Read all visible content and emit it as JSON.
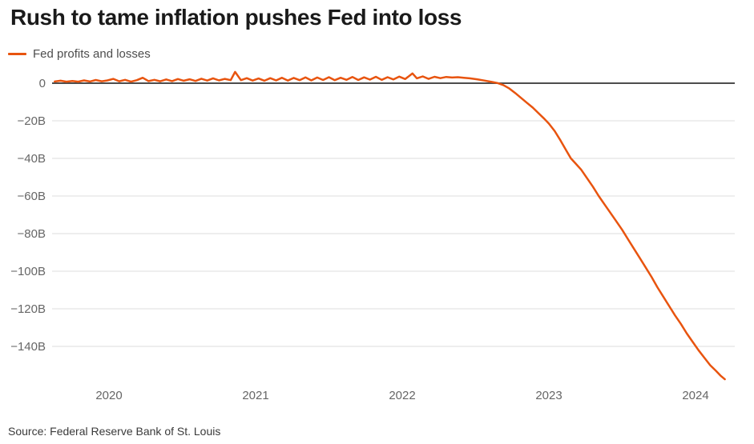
{
  "page": {
    "title": "Rush to tame inflation pushes Fed into loss",
    "source": "Source: Federal Reserve Bank of St. Louis"
  },
  "legend": {
    "items": [
      {
        "label": "Fed profits and losses",
        "color": "#e8540f"
      }
    ]
  },
  "chart_data": {
    "type": "line",
    "title": "Rush to tame inflation pushes Fed into loss",
    "xlabel": "",
    "ylabel": "",
    "y_unit": "billions of U.S. dollars",
    "xlim": [
      2019.6,
      2024.32
    ],
    "ylim": [
      -160,
      8
    ],
    "grid": "horizontal",
    "zero_line": true,
    "legend_position": "top-left",
    "x_ticks": [
      {
        "value": 2020,
        "label": "2020"
      },
      {
        "value": 2021,
        "label": "2021"
      },
      {
        "value": 2022,
        "label": "2022"
      },
      {
        "value": 2023,
        "label": "2023"
      },
      {
        "value": 2024,
        "label": "2024"
      }
    ],
    "y_ticks": [
      {
        "value": 0,
        "label": "0"
      },
      {
        "value": -20,
        "label": "−20B"
      },
      {
        "value": -40,
        "label": "−40B"
      },
      {
        "value": -60,
        "label": "−60B"
      },
      {
        "value": -80,
        "label": "−80B"
      },
      {
        "value": -100,
        "label": "−100B"
      },
      {
        "value": -120,
        "label": "−120B"
      },
      {
        "value": -140,
        "label": "−140B"
      }
    ],
    "colors": {
      "line": "#e8540f",
      "grid": "#dcdcdc",
      "zero_axis": "#4d4d4d",
      "title": "#1a1a1a",
      "tick_label": "#666666",
      "legend_text": "#4d4d4d",
      "source_text": "#3a3a3a"
    },
    "series": [
      {
        "name": "Fed profits and losses",
        "color": "#e8540f",
        "points": [
          [
            2019.63,
            0.9
          ],
          [
            2019.67,
            1.3
          ],
          [
            2019.71,
            0.8
          ],
          [
            2019.75,
            1.2
          ],
          [
            2019.79,
            0.8
          ],
          [
            2019.83,
            1.5
          ],
          [
            2019.87,
            0.9
          ],
          [
            2019.91,
            1.7
          ],
          [
            2019.95,
            1.0
          ],
          [
            2019.99,
            1.5
          ],
          [
            2020.03,
            2.3
          ],
          [
            2020.07,
            1.0
          ],
          [
            2020.11,
            1.8
          ],
          [
            2020.15,
            0.8
          ],
          [
            2020.19,
            1.6
          ],
          [
            2020.23,
            2.9
          ],
          [
            2020.27,
            1.1
          ],
          [
            2020.31,
            1.8
          ],
          [
            2020.35,
            1.0
          ],
          [
            2020.39,
            2.0
          ],
          [
            2020.43,
            1.1
          ],
          [
            2020.47,
            2.2
          ],
          [
            2020.51,
            1.3
          ],
          [
            2020.55,
            2.1
          ],
          [
            2020.59,
            1.2
          ],
          [
            2020.63,
            2.4
          ],
          [
            2020.67,
            1.4
          ],
          [
            2020.71,
            2.6
          ],
          [
            2020.75,
            1.5
          ],
          [
            2020.79,
            2.3
          ],
          [
            2020.83,
            1.6
          ],
          [
            2020.86,
            6.0
          ],
          [
            2020.9,
            1.6
          ],
          [
            2020.94,
            2.7
          ],
          [
            2020.98,
            1.4
          ],
          [
            2021.02,
            2.5
          ],
          [
            2021.06,
            1.3
          ],
          [
            2021.1,
            2.7
          ],
          [
            2021.14,
            1.5
          ],
          [
            2021.18,
            2.9
          ],
          [
            2021.22,
            1.4
          ],
          [
            2021.26,
            2.8
          ],
          [
            2021.3,
            1.6
          ],
          [
            2021.34,
            3.1
          ],
          [
            2021.38,
            1.5
          ],
          [
            2021.42,
            3.0
          ],
          [
            2021.46,
            1.7
          ],
          [
            2021.5,
            3.2
          ],
          [
            2021.54,
            1.6
          ],
          [
            2021.58,
            2.9
          ],
          [
            2021.62,
            1.8
          ],
          [
            2021.66,
            3.3
          ],
          [
            2021.7,
            1.7
          ],
          [
            2021.74,
            3.1
          ],
          [
            2021.78,
            1.9
          ],
          [
            2021.82,
            3.4
          ],
          [
            2021.86,
            1.8
          ],
          [
            2021.9,
            3.2
          ],
          [
            2021.94,
            2.0
          ],
          [
            2021.98,
            3.5
          ],
          [
            2022.02,
            2.2
          ],
          [
            2022.07,
            5.2
          ],
          [
            2022.1,
            2.6
          ],
          [
            2022.14,
            3.6
          ],
          [
            2022.18,
            2.3
          ],
          [
            2022.22,
            3.4
          ],
          [
            2022.26,
            2.7
          ],
          [
            2022.3,
            3.3
          ],
          [
            2022.34,
            3.0
          ],
          [
            2022.38,
            3.2
          ],
          [
            2022.42,
            2.9
          ],
          [
            2022.46,
            2.6
          ],
          [
            2022.51,
            2.1
          ],
          [
            2022.56,
            1.4
          ],
          [
            2022.61,
            0.7
          ],
          [
            2022.65,
            0.1
          ],
          [
            2022.69,
            -1.0
          ],
          [
            2022.73,
            -2.8
          ],
          [
            2022.77,
            -5.2
          ],
          [
            2022.81,
            -7.8
          ],
          [
            2022.85,
            -10.4
          ],
          [
            2022.89,
            -13.0
          ],
          [
            2022.93,
            -16.0
          ],
          [
            2022.97,
            -19.0
          ],
          [
            2023.0,
            -21.5
          ],
          [
            2023.04,
            -25.5
          ],
          [
            2023.08,
            -30.5
          ],
          [
            2023.12,
            -36.0
          ],
          [
            2023.15,
            -40.0
          ],
          [
            2023.18,
            -42.5
          ],
          [
            2023.22,
            -46.0
          ],
          [
            2023.26,
            -50.5
          ],
          [
            2023.3,
            -55.0
          ],
          [
            2023.34,
            -60.0
          ],
          [
            2023.38,
            -64.5
          ],
          [
            2023.42,
            -69.0
          ],
          [
            2023.46,
            -73.5
          ],
          [
            2023.5,
            -78.0
          ],
          [
            2023.54,
            -83.0
          ],
          [
            2023.58,
            -88.0
          ],
          [
            2023.62,
            -93.0
          ],
          [
            2023.66,
            -98.0
          ],
          [
            2023.7,
            -103.0
          ],
          [
            2023.74,
            -108.5
          ],
          [
            2023.78,
            -113.5
          ],
          [
            2023.82,
            -118.5
          ],
          [
            2023.86,
            -123.5
          ],
          [
            2023.9,
            -128.0
          ],
          [
            2023.94,
            -133.0
          ],
          [
            2023.98,
            -137.5
          ],
          [
            2024.02,
            -142.0
          ],
          [
            2024.06,
            -146.0
          ],
          [
            2024.1,
            -150.0
          ],
          [
            2024.14,
            -153.0
          ],
          [
            2024.17,
            -155.5
          ],
          [
            2024.2,
            -157.5
          ]
        ]
      }
    ]
  }
}
